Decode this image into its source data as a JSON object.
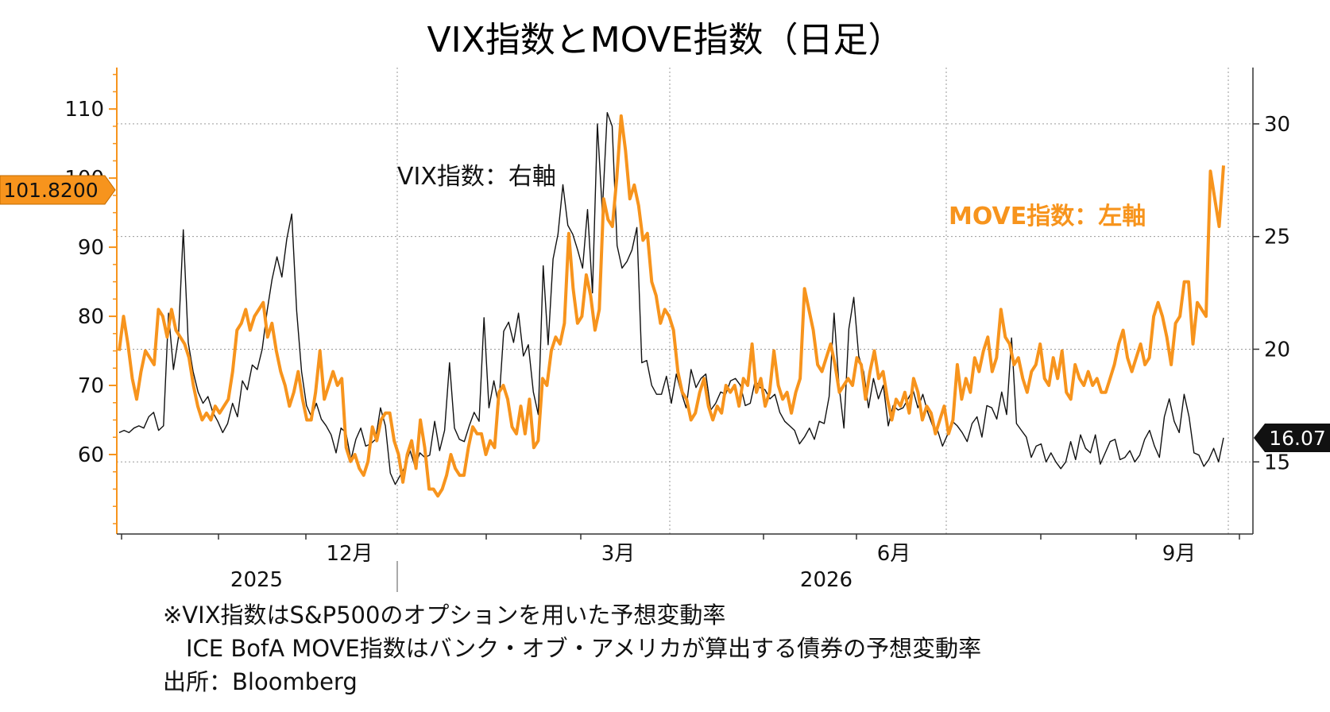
{
  "chart_data": {
    "type": "line",
    "title": "VIX指数とMOVE指数（日足）",
    "annotation_vix": "VIX指数：右軸",
    "annotation_move": "MOVE指数：左軸",
    "left_axis": {
      "ticks": [
        60,
        70,
        80,
        90,
        100,
        110
      ],
      "range": [
        48.5,
        116
      ]
    },
    "right_axis": {
      "ticks": [
        15,
        20,
        25,
        30
      ],
      "range": [
        11.8,
        32.5
      ]
    },
    "x_ticks": [
      "12月",
      "3月",
      "6月",
      "9月"
    ],
    "years": [
      "2025",
      "2026"
    ],
    "last_value_left": "101.8200",
    "last_value_right": "16.07",
    "colors": {
      "move": "#f7941d",
      "vix": "#111111",
      "grid": "#9a9a9a",
      "left_axis": "#f7941d"
    },
    "series": [
      {
        "name": "VIX指数",
        "axis": "right",
        "values": [
          16.3,
          16.4,
          16.3,
          16.5,
          16.6,
          16.5,
          17.0,
          17.2,
          16.4,
          16.6,
          21.6,
          19.1,
          20.5,
          25.3,
          20.3,
          19.0,
          18.1,
          17.6,
          17.9,
          17.2,
          16.8,
          16.3,
          16.7,
          17.6,
          17.0,
          18.6,
          18.2,
          19.3,
          19.1,
          20.0,
          21.7,
          23.1,
          24.1,
          23.2,
          24.9,
          26.0,
          21.7,
          19.0,
          17.5,
          17.0,
          17.6,
          16.9,
          16.6,
          16.2,
          15.4,
          16.5,
          16.3,
          15.1,
          16.0,
          16.5,
          15.7,
          15.8,
          16.0,
          17.4,
          16.6,
          14.5,
          14.0,
          14.4,
          14.8,
          15.5,
          14.8,
          15.4,
          15.2,
          15.3,
          16.8,
          15.5,
          16.4,
          19.4,
          16.5,
          16.0,
          15.9,
          16.6,
          17.2,
          16.8,
          21.4,
          17.4,
          18.6,
          17.5,
          20.8,
          21.2,
          20.3,
          21.6,
          19.7,
          20.2,
          18.1,
          17.1,
          23.7,
          20.2,
          24.0,
          25.1,
          27.3,
          25.5,
          25.1,
          24.4,
          23.6,
          26.2,
          22.5,
          30.0,
          26.1,
          30.5,
          29.9,
          24.6,
          23.6,
          23.9,
          24.4,
          25.4,
          19.4,
          19.5,
          18.4,
          18.0,
          18.0,
          18.8,
          17.6,
          18.9,
          18.1,
          17.4,
          19.1,
          18.3,
          18.7,
          18.9,
          17.3,
          17.6,
          18.1,
          18.0,
          18.6,
          18.7,
          18.4,
          17.5,
          17.6,
          18.6,
          18.3,
          18.2,
          17.8,
          18.0,
          17.2,
          16.8,
          16.6,
          16.4,
          15.8,
          16.1,
          16.5,
          16.0,
          16.8,
          16.7,
          17.9,
          21.6,
          18.4,
          16.5,
          20.9,
          22.3,
          19.7,
          19.0,
          17.4,
          18.7,
          17.8,
          18.4,
          16.6,
          17.5,
          17.3,
          17.4,
          17.8,
          18.2,
          17.4,
          18.0,
          17.2,
          16.6,
          16.4,
          15.7,
          16.2,
          16.8,
          16.6,
          16.3,
          15.9,
          16.7,
          17.0,
          16.1,
          17.5,
          17.4,
          16.9,
          18.1,
          17.1,
          20.5,
          16.7,
          16.4,
          16.1,
          15.2,
          15.7,
          15.8,
          15.0,
          15.4,
          15.0,
          14.7,
          15.0,
          15.9,
          15.1,
          16.2,
          15.6,
          15.4,
          16.2,
          14.9,
          15.4,
          15.9,
          16.0,
          15.1,
          15.2,
          15.5,
          15.0,
          15.3,
          16.0,
          16.4,
          15.7,
          15.2,
          17.0,
          17.8,
          16.8,
          16.3,
          18.0,
          17.0,
          15.4,
          15.3,
          14.8,
          15.1,
          15.6,
          15.0,
          16.07
        ]
      },
      {
        "name": "MOVE指数",
        "axis": "left",
        "values": [
          75.0,
          80.0,
          76.0,
          71.0,
          68.0,
          72.0,
          75.0,
          74.0,
          73.0,
          81.0,
          80.0,
          77.0,
          81.0,
          78.0,
          77.0,
          76.0,
          74.0,
          70.0,
          67.0,
          65.0,
          66.0,
          65.0,
          67.0,
          66.0,
          67.0,
          68.0,
          72.0,
          78.0,
          79.0,
          81.0,
          78.0,
          80.0,
          81.0,
          82.0,
          77.0,
          79.0,
          75.0,
          72.0,
          70.0,
          67.0,
          69.0,
          72.0,
          68.0,
          65.0,
          65.0,
          69.0,
          75.0,
          68.0,
          70.0,
          72.0,
          70.0,
          71.0,
          61.0,
          59.0,
          60.0,
          58.0,
          57.0,
          59.0,
          64.0,
          62.0,
          65.0,
          66.0,
          66.0,
          62.0,
          60.0,
          56.0,
          60.0,
          62.0,
          58.0,
          65.0,
          61.0,
          55.0,
          55.0,
          54.0,
          55.0,
          57.0,
          60.0,
          58.0,
          57.0,
          57.0,
          61.0,
          64.0,
          63.0,
          63.0,
          60.0,
          62.0,
          61.0,
          69.0,
          70.0,
          68.0,
          64.0,
          63.0,
          67.0,
          63.0,
          68.0,
          61.0,
          62.0,
          71.0,
          70.0,
          75.0,
          77.0,
          76.0,
          79.0,
          92.0,
          84.0,
          79.0,
          80.0,
          86.0,
          83.0,
          78.0,
          81.0,
          97.0,
          94.0,
          93.0,
          100.0,
          109.0,
          104.0,
          97.0,
          99.0,
          96.0,
          91.0,
          92.0,
          85.0,
          83.0,
          79.0,
          81.0,
          80.0,
          78.0,
          72.0,
          69.0,
          68.0,
          65.0,
          66.0,
          69.0,
          71.0,
          67.0,
          65.0,
          67.0,
          66.0,
          70.0,
          69.0,
          70.0,
          67.0,
          71.0,
          70.0,
          76.0,
          69.0,
          71.0,
          67.0,
          69.0,
          75.0,
          70.0,
          68.0,
          69.0,
          66.0,
          69.0,
          71.0,
          84.0,
          81.0,
          78.0,
          73.0,
          72.0,
          74.0,
          76.0,
          73.0,
          69.0,
          70.0,
          71.0,
          70.0,
          74.0,
          73.0,
          68.0,
          72.0,
          75.0,
          71.0,
          72.0,
          68.0,
          65.0,
          68.0,
          67.0,
          69.0,
          66.0,
          71.0,
          69.0,
          65.0,
          67.0,
          66.0,
          63.0,
          65.0,
          67.0,
          63.0,
          65.0,
          73.0,
          68.0,
          71.0,
          69.0,
          74.0,
          72.0,
          75.0,
          77.0,
          72.0,
          74.0,
          81.0,
          77.0,
          76.0,
          73.0,
          74.0,
          71.0,
          69.0,
          72.0,
          73.0,
          76.0,
          71.0,
          70.0,
          74.0,
          71.0,
          75.0,
          69.0,
          68.0,
          73.0,
          71.0,
          70.0,
          72.0,
          70.0,
          71.0,
          69.0,
          69.0,
          71.0,
          73.0,
          76.0,
          78.0,
          74.0,
          72.0,
          74.0,
          76.0,
          73.0,
          74.0,
          80.0,
          82.0,
          80.0,
          77.0,
          73.0,
          79.0,
          80.0,
          85.0,
          85.0,
          76.0,
          82.0,
          81.0,
          80.0,
          101.0,
          97.0,
          93.0,
          101.82
        ]
      }
    ]
  },
  "footnotes": [
    "※VIX指数はS&P500のオプションを用いた予想変動率",
    "　ICE BofA MOVE指数はバンク・オブ・アメリカが算出する債券の予想変動率",
    "出所：Bloomberg"
  ]
}
